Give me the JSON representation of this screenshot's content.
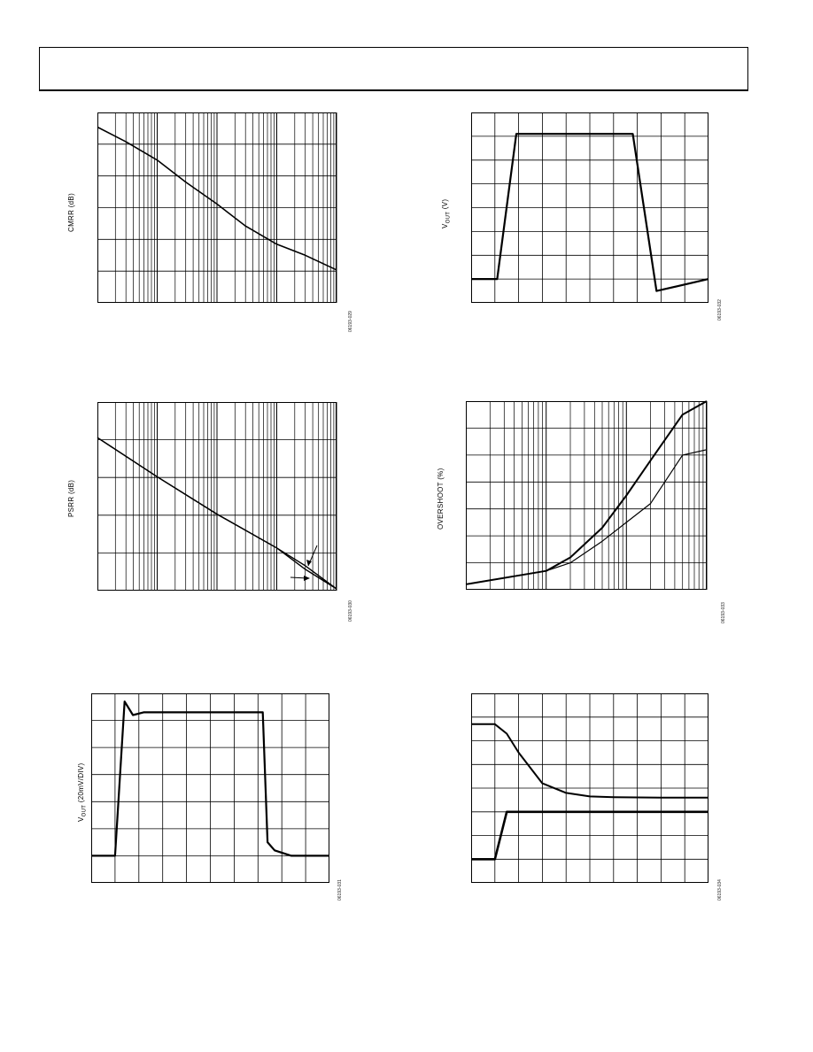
{
  "chart_data": [
    {
      "type": "line",
      "ylabel": "CMRR (dB)",
      "x_scale": "log",
      "x": [
        1,
        3,
        10,
        30,
        100,
        300,
        1000,
        3000,
        10000
      ],
      "series": [
        {
          "values": [
            100,
            98,
            95.5,
            92.5,
            89.5,
            86.5,
            84,
            82.5,
            80.5
          ]
        }
      ],
      "figure_code": "06193-029",
      "grid": true
    },
    {
      "type": "line",
      "ylabel": "V",
      "ylabel_sub": "OUT",
      "ylabel_suffix": " (V)",
      "x": [
        0,
        1.15,
        2,
        7.15,
        8.2,
        10.5
      ],
      "series": [
        {
          "values": [
            1,
            1,
            7.1,
            7.1,
            0.5,
            1
          ]
        }
      ],
      "figure_code": "06193-032",
      "grid": true
    },
    {
      "type": "line",
      "ylabel": "PSRR (dB)",
      "x_scale": "log",
      "x": [
        1,
        10,
        100,
        1000,
        3000,
        10000
      ],
      "series": [
        {
          "values": [
            90,
            79,
            68.5,
            59,
            54,
            47.5
          ]
        },
        {
          "values": [
            90,
            79,
            68.5,
            59,
            53,
            47.5
          ]
        }
      ],
      "figure_code": "06193-030",
      "grid": true
    },
    {
      "type": "line",
      "ylabel": "OVERSHOOT (%)",
      "x_scale": "log",
      "x": [
        1,
        10,
        20,
        50,
        100,
        200,
        500,
        1000
      ],
      "series": [
        {
          "values": [
            0.2,
            0.7,
            1.2,
            2.3,
            3.5,
            4.8,
            6.5,
            7.0
          ]
        },
        {
          "values": [
            0.2,
            0.7,
            1.0,
            1.8,
            2.5,
            3.2,
            5.0,
            5.2
          ]
        }
      ],
      "figure_code": "06193-033",
      "grid": true
    },
    {
      "type": "line",
      "ylabel": "V",
      "ylabel_sub": "OUT",
      "ylabel_suffix": " (20mV/DIV)",
      "x": [
        0,
        1,
        1.4,
        1.75,
        2.2,
        7.2,
        7.4,
        7.7,
        8.4,
        10
      ],
      "series": [
        {
          "values": [
            1,
            1,
            6.7,
            6.2,
            6.3,
            6.3,
            1.5,
            1.2,
            1.0,
            1.0
          ]
        }
      ],
      "figure_code": "06193-031",
      "grid": true
    },
    {
      "type": "line",
      "x": [
        0,
        1,
        1.5,
        2,
        3,
        4,
        5,
        6,
        8,
        10
      ],
      "series": [
        {
          "values": [
            6.7,
            6.7,
            6.3,
            5.5,
            4.2,
            3.8,
            3.65,
            3.62,
            3.6,
            3.6
          ]
        },
        {
          "values": [
            1.0,
            1.0,
            3.0,
            3.0,
            3.0,
            3.0,
            3.0,
            3.0,
            3.0,
            3.0
          ]
        }
      ],
      "figure_code": "06193-034",
      "grid": true
    }
  ]
}
